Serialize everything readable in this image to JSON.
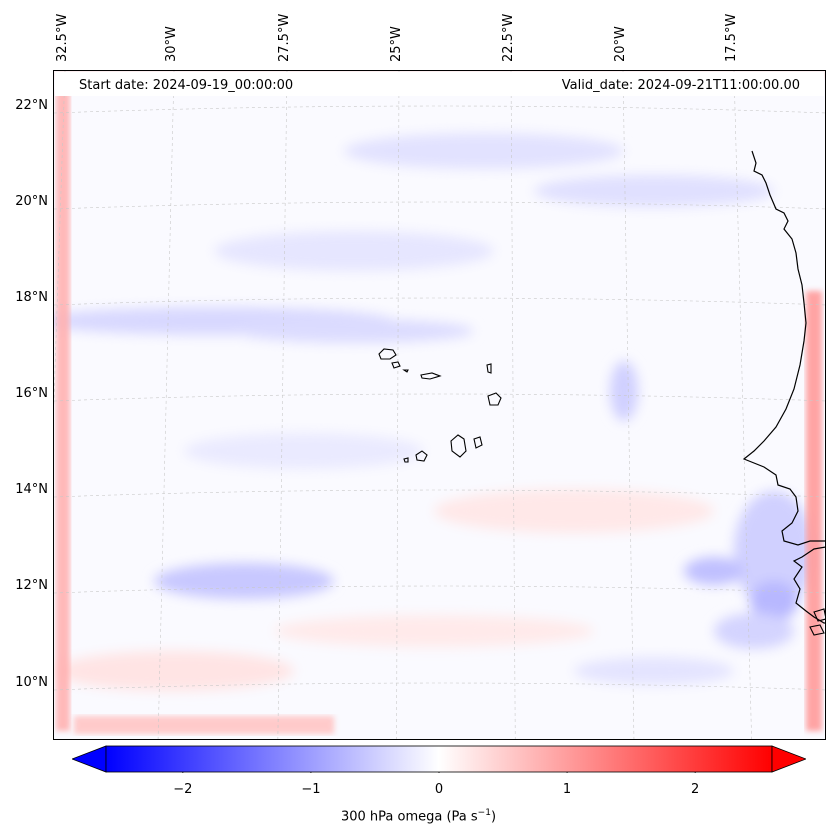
{
  "map": {
    "header": {
      "start_date": "Start date: 2024-09-19_00:00:00",
      "valid_date": "Valid_date: 2024-09-21T11:00:00.00"
    },
    "longitude_labels": [
      "32.5°W",
      "30°W",
      "27.5°W",
      "25°W",
      "22.5°W",
      "20°W",
      "17.5°W"
    ],
    "latitude_labels": [
      "22°N",
      "20°N",
      "18°N",
      "16°N",
      "14°N",
      "12°N",
      "10°N"
    ],
    "field": "300 hPa omega",
    "colormap": "bwr",
    "colors": {
      "negative": "#0000ff",
      "zero": "#ffffff",
      "positive": "#ff0000",
      "coastline": "#000000",
      "grid": "#cccccc"
    }
  },
  "colorbar": {
    "ticks": [
      "−2",
      "−1",
      "0",
      "1",
      "2"
    ],
    "range": [
      -2.6,
      2.6
    ],
    "extend": "both",
    "label_main": "300 hPa omega (Pa s",
    "label_sup": "−1",
    "label_end": ")"
  }
}
